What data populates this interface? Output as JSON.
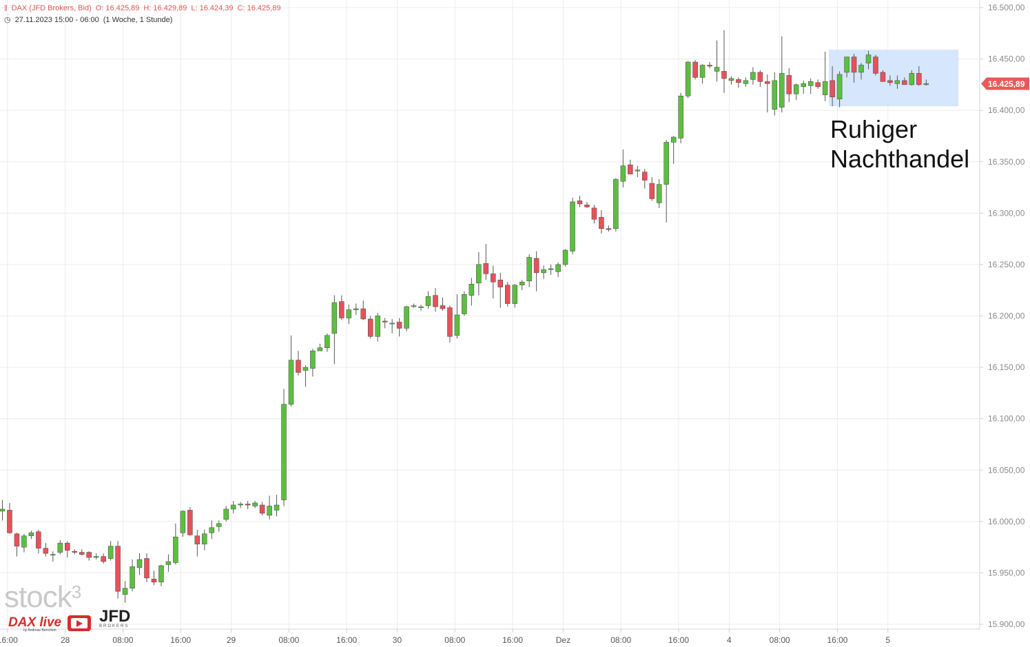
{
  "header": {
    "instrument": "DAX (JFD Brokers, Bid)",
    "open": "O: 16.425,89",
    "high": "H: 16.429,89",
    "low": "L: 16.424,39",
    "close": "C: 16.425,89",
    "range": "27.11.2023 15:00 - 06:00",
    "period": "(1 Woche, 1 Stunde)"
  },
  "annotation": {
    "line1": "Ruhiger",
    "line2": "Nachthandel"
  },
  "logos": {
    "stock": "stock",
    "stock_sup": "3",
    "dax": "DAX live",
    "dax_sub": "by Andreas Bernstein",
    "jfd": "JFD",
    "jfd_sub": "BROKERS"
  },
  "colors": {
    "up": "#5cbf3f",
    "down": "#e8515a",
    "last_price_bg": "#e85a5a",
    "highlight": "#cfe2fc"
  },
  "chart_data": {
    "type": "candlestick",
    "y_axis": {
      "min": 15890,
      "max": 16505,
      "ticks": [
        15900,
        15950,
        16000,
        16050,
        16100,
        16150,
        16200,
        16250,
        16300,
        16350,
        16400,
        16450,
        16500
      ]
    },
    "y_tick_labels": [
      "15.900,00",
      "15.950,00",
      "16.000,00",
      "16.050,00",
      "16.100,00",
      "16.150,00",
      "16.200,00",
      "16.250,00",
      "16.300,00",
      "16.350,00",
      "16.400,00",
      "16.450,00",
      "16.500,00"
    ],
    "x_labels": [
      {
        "label": "16:00",
        "bar": 0.7
      },
      {
        "label": "28",
        "bar": 8.7
      },
      {
        "label": "08:00",
        "bar": 16.7
      },
      {
        "label": "16:00",
        "bar": 24.7
      },
      {
        "label": "29",
        "bar": 31.7
      },
      {
        "label": "08:00",
        "bar": 39.7
      },
      {
        "label": "16:00",
        "bar": 47.7
      },
      {
        "label": "30",
        "bar": 54.7
      },
      {
        "label": "08:00",
        "bar": 62.7
      },
      {
        "label": "16:00",
        "bar": 70.7
      },
      {
        "label": "Dez",
        "bar": 77.7
      },
      {
        "label": "08:00",
        "bar": 85.7
      },
      {
        "label": "16:00",
        "bar": 93.7
      },
      {
        "label": "4",
        "bar": 100.7
      },
      {
        "label": "08:00",
        "bar": 107.7
      },
      {
        "label": "16:00",
        "bar": 115.7
      },
      {
        "label": "5",
        "bar": 122.7
      }
    ],
    "last_price": 16425.89,
    "last_price_label": "16.425,89",
    "highlight_range": {
      "from_bar": 115,
      "to_bar": 132,
      "low": 16404,
      "high": 16459
    },
    "candles": [
      [
        16010,
        16021,
        16001,
        16012
      ],
      [
        16011,
        16018,
        15988,
        15989
      ],
      [
        15988,
        15989,
        15966,
        15976
      ],
      [
        15975,
        15988,
        15970,
        15986
      ],
      [
        15986,
        15991,
        15983,
        15989
      ],
      [
        15990,
        15992,
        15969,
        15974
      ],
      [
        15974,
        15979,
        15966,
        15969
      ],
      [
        15968,
        15971,
        15961,
        15968
      ],
      [
        15970,
        15982,
        15968,
        15979
      ],
      [
        15979,
        15981,
        15965,
        15972
      ],
      [
        15971,
        15973,
        15968,
        15970
      ],
      [
        15970,
        15973,
        15967,
        15968
      ],
      [
        15970,
        15971,
        15962,
        15965
      ],
      [
        15965,
        15969,
        15963,
        15966
      ],
      [
        15966,
        15969,
        15959,
        15961
      ],
      [
        15964,
        15981,
        15962,
        15976
      ],
      [
        15976,
        15981,
        15925,
        15932
      ],
      [
        15929,
        15942,
        15921,
        15935
      ],
      [
        15935,
        15963,
        15932,
        15956
      ],
      [
        15955,
        15969,
        15948,
        15963
      ],
      [
        15964,
        15969,
        15941,
        15945
      ],
      [
        15944,
        15952,
        15938,
        15941
      ],
      [
        15941,
        15958,
        15937,
        15957
      ],
      [
        15958,
        15968,
        15951,
        15961
      ],
      [
        15960,
        15998,
        15958,
        15985
      ],
      [
        15989,
        16011,
        15985,
        16010
      ],
      [
        16011,
        16014,
        15986,
        15987
      ],
      [
        15986,
        15992,
        15966,
        15978
      ],
      [
        15978,
        15992,
        15972,
        15988
      ],
      [
        15989,
        16001,
        15983,
        15994
      ],
      [
        15995,
        16001,
        15990,
        15998
      ],
      [
        16002,
        16015,
        16000,
        16012
      ],
      [
        16012,
        16020,
        16008,
        16016
      ],
      [
        16016,
        16019,
        16013,
        16017
      ],
      [
        16017,
        16020,
        16012,
        16016
      ],
      [
        16015,
        16020,
        16013,
        16018
      ],
      [
        16016,
        16019,
        16006,
        16008
      ],
      [
        16006,
        16025,
        16002,
        16015
      ],
      [
        16011,
        16026,
        16005,
        16016
      ],
      [
        16021,
        16129,
        16015,
        16114
      ],
      [
        16114,
        16181,
        16112,
        16157
      ],
      [
        16157,
        16166,
        16142,
        16145
      ],
      [
        16147,
        16152,
        16131,
        16150
      ],
      [
        16149,
        16168,
        16141,
        16166
      ],
      [
        16166,
        16173,
        16166,
        16169
      ],
      [
        16169,
        16183,
        16165,
        16181
      ],
      [
        16183,
        16220,
        16153,
        16213
      ],
      [
        16214,
        16220,
        16196,
        16198
      ],
      [
        16198,
        16211,
        16192,
        16206
      ],
      [
        16206,
        16212,
        16201,
        16207
      ],
      [
        16207,
        16215,
        16196,
        16197
      ],
      [
        16197,
        16200,
        16178,
        16180
      ],
      [
        16180,
        16203,
        16175,
        16200
      ],
      [
        16195,
        16198,
        16188,
        16194
      ],
      [
        16193,
        16197,
        16183,
        16193
      ],
      [
        16194,
        16198,
        16180,
        16188
      ],
      [
        16188,
        16210,
        16185,
        16209
      ],
      [
        16209,
        16212,
        16208,
        16210
      ],
      [
        16208,
        16211,
        16205,
        16209
      ],
      [
        16210,
        16224,
        16207,
        16219
      ],
      [
        16220,
        16227,
        16204,
        16209
      ],
      [
        16210,
        16218,
        16205,
        16207
      ],
      [
        16208,
        16210,
        16174,
        16180
      ],
      [
        16181,
        16221,
        16178,
        16201
      ],
      [
        16202,
        16224,
        16200,
        16221
      ],
      [
        16220,
        16237,
        16210,
        16231
      ],
      [
        16232,
        16262,
        16220,
        16250
      ],
      [
        16251,
        16270,
        16235,
        16241
      ],
      [
        16241,
        16249,
        16217,
        16233
      ],
      [
        16235,
        16242,
        16208,
        16228
      ],
      [
        16230,
        16233,
        16209,
        16212
      ],
      [
        16212,
        16231,
        16208,
        16230
      ],
      [
        16230,
        16235,
        16225,
        16233
      ],
      [
        16234,
        16260,
        16228,
        16257
      ],
      [
        16256,
        16263,
        16224,
        16242
      ],
      [
        16242,
        16249,
        16236,
        16245
      ],
      [
        16245,
        16250,
        16240,
        16246
      ],
      [
        16243,
        16252,
        16238,
        16250
      ],
      [
        16250,
        16265,
        16248,
        16264
      ],
      [
        16263,
        16315,
        16260,
        16311
      ],
      [
        16312,
        16317,
        16306,
        16309
      ],
      [
        16308,
        16311,
        16305,
        16306
      ],
      [
        16305,
        16308,
        16290,
        16294
      ],
      [
        16296,
        16303,
        16280,
        16285
      ],
      [
        16285,
        16288,
        16282,
        16284
      ],
      [
        16285,
        16334,
        16282,
        16333
      ],
      [
        16331,
        16362,
        16325,
        16346
      ],
      [
        16347,
        16352,
        16338,
        16338
      ],
      [
        16341,
        16346,
        16335,
        16342
      ],
      [
        16340,
        16343,
        16324,
        16332
      ],
      [
        16329,
        16335,
        16312,
        16314
      ],
      [
        16310,
        16333,
        16305,
        16328
      ],
      [
        16328,
        16371,
        16291,
        16369
      ],
      [
        16369,
        16375,
        16348,
        16374
      ],
      [
        16373,
        16417,
        16368,
        16414
      ],
      [
        16414,
        16448,
        16412,
        16447
      ],
      [
        16447,
        16449,
        16430,
        16432
      ],
      [
        16432,
        16445,
        16426,
        16444
      ],
      [
        16444,
        16447,
        16441,
        16443
      ],
      [
        16438,
        16468,
        16428,
        16442
      ],
      [
        16438,
        16478,
        16417,
        16431
      ],
      [
        16429,
        16433,
        16425,
        16431
      ],
      [
        16430,
        16432,
        16422,
        16427
      ],
      [
        16426,
        16432,
        16423,
        16429
      ],
      [
        16430,
        16442,
        16425,
        16437
      ],
      [
        16437,
        16439,
        16423,
        16428
      ],
      [
        16428,
        16435,
        16398,
        16426
      ],
      [
        16401,
        16437,
        16395,
        16429
      ],
      [
        16403,
        16472,
        16398,
        16436
      ],
      [
        16434,
        16441,
        16408,
        16416
      ],
      [
        16416,
        16426,
        16410,
        16425
      ],
      [
        16423,
        16429,
        16416,
        16426
      ],
      [
        16424,
        16431,
        16416,
        16428
      ],
      [
        16427,
        16430,
        16421,
        16423
      ],
      [
        16415,
        16457,
        16409,
        16428
      ],
      [
        16429,
        16443,
        16404,
        16413
      ],
      [
        16411,
        16438,
        16403,
        16435
      ],
      [
        16437,
        16452,
        16432,
        16452
      ],
      [
        16452,
        16455,
        16427,
        16437
      ],
      [
        16437,
        16446,
        16430,
        16444
      ],
      [
        16446,
        16458,
        16440,
        16454
      ],
      [
        16452,
        16454,
        16434,
        16436
      ],
      [
        16437,
        16439,
        16429,
        16428
      ],
      [
        16429,
        16434,
        16424,
        16427
      ],
      [
        16426,
        16434,
        16421,
        16429
      ],
      [
        16429,
        16432,
        16425,
        16425
      ],
      [
        16425,
        16439,
        16424,
        16436
      ],
      [
        16436,
        16443,
        16424,
        16425
      ],
      [
        16425,
        16430,
        16424,
        16426
      ]
    ]
  }
}
